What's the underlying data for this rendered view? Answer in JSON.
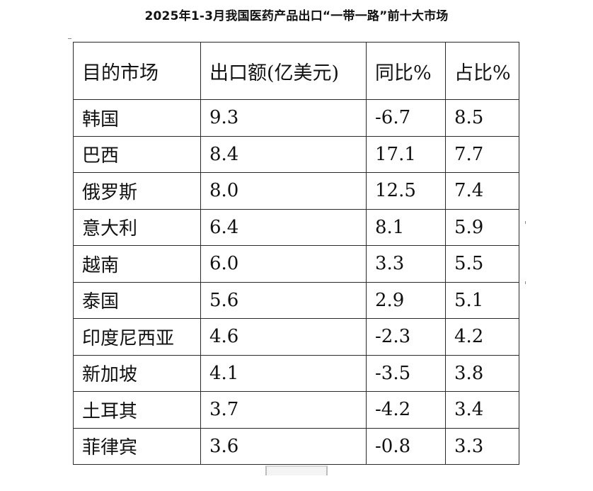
{
  "title": "2025年1-3月我国医药产品出口“一带一路”前十大市场",
  "table": {
    "headers": [
      "目的市场",
      "出口额(亿美元)",
      "同比%",
      "占比%"
    ],
    "rows": [
      [
        "韩国",
        "9.3",
        "-6.7",
        "8.5"
      ],
      [
        "巴西",
        "8.4",
        "17.1",
        "7.7"
      ],
      [
        "俄罗斯",
        "8.0",
        "12.5",
        "7.4"
      ],
      [
        "意大利",
        "6.4",
        "8.1",
        "5.9"
      ],
      [
        "越南",
        "6.0",
        "3.3",
        "5.5"
      ],
      [
        "泰国",
        "5.6",
        "2.9",
        "5.1"
      ],
      [
        "印度尼西亚",
        "4.6",
        "-2.3",
        "4.2"
      ],
      [
        "新加坡",
        "4.1",
        "-3.5",
        "3.8"
      ],
      [
        "土耳其",
        "3.7",
        "-4.2",
        "3.4"
      ],
      [
        "菲律宾",
        "3.6",
        "-0.8",
        "3.3"
      ]
    ]
  }
}
